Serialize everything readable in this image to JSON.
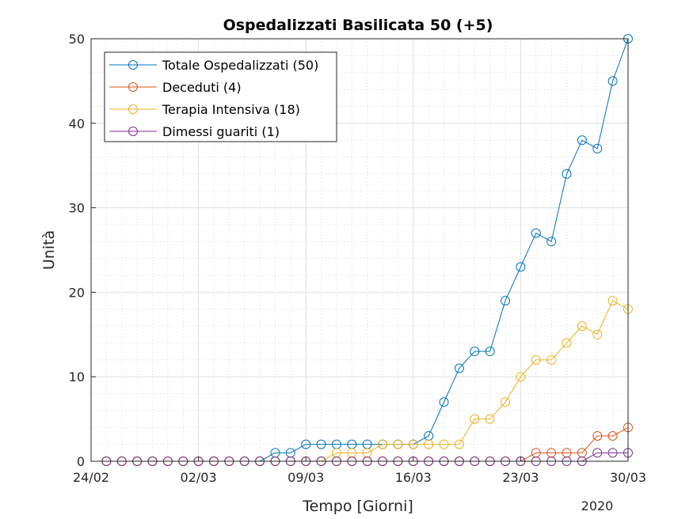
{
  "chart_data": {
    "type": "line",
    "title": "Ospedalizzati Basilicata 50 (+5)",
    "xlabel": "Tempo [Giorni]",
    "ylabel": "Unità",
    "year_label": "2020",
    "ylim": [
      0,
      50
    ],
    "yticks": [
      0,
      10,
      20,
      30,
      40,
      50
    ],
    "xlim": [
      "24/02",
      "30/03"
    ],
    "xtick_labels": [
      "24/02",
      "02/03",
      "09/03",
      "16/03",
      "23/03",
      "30/03"
    ],
    "grid": true,
    "minor_grid": true,
    "legend_position": "top-left",
    "x": [
      "25/02",
      "26/02",
      "27/02",
      "28/02",
      "29/02",
      "01/03",
      "02/03",
      "03/03",
      "04/03",
      "05/03",
      "06/03",
      "07/03",
      "08/03",
      "09/03",
      "10/03",
      "11/03",
      "12/03",
      "13/03",
      "14/03",
      "15/03",
      "16/03",
      "17/03",
      "18/03",
      "19/03",
      "20/03",
      "21/03",
      "22/03",
      "23/03",
      "24/03",
      "25/03",
      "26/03",
      "27/03",
      "28/03",
      "29/03",
      "30/03"
    ],
    "series": [
      {
        "name": "Totale Ospedalizzati (50)",
        "color": "#0072BD",
        "values": [
          0,
          0,
          0,
          0,
          0,
          0,
          0,
          0,
          0,
          0,
          0,
          1,
          1,
          2,
          2,
          2,
          2,
          2,
          2,
          2,
          2,
          3,
          7,
          11,
          13,
          13,
          19,
          23,
          27,
          26,
          34,
          38,
          37,
          45,
          50
        ]
      },
      {
        "name": "Deceduti (4)",
        "color": "#D95319",
        "values": [
          0,
          0,
          0,
          0,
          0,
          0,
          0,
          0,
          0,
          0,
          0,
          0,
          0,
          0,
          0,
          0,
          0,
          0,
          0,
          0,
          0,
          0,
          0,
          0,
          0,
          0,
          0,
          0,
          1,
          1,
          1,
          1,
          3,
          3,
          4
        ]
      },
      {
        "name": "Terapia Intensiva (18)",
        "color": "#EDB120",
        "values": [
          0,
          0,
          0,
          0,
          0,
          0,
          0,
          0,
          0,
          0,
          0,
          0,
          0,
          0,
          0,
          1,
          1,
          1,
          2,
          2,
          2,
          2,
          2,
          2,
          5,
          5,
          7,
          10,
          12,
          12,
          14,
          16,
          15,
          19,
          18
        ]
      },
      {
        "name": "Dimessi guariti (1)",
        "color": "#7E2F8E",
        "values": [
          0,
          0,
          0,
          0,
          0,
          0,
          0,
          0,
          0,
          0,
          0,
          0,
          0,
          0,
          0,
          0,
          0,
          0,
          0,
          0,
          0,
          0,
          0,
          0,
          0,
          0,
          0,
          0,
          0,
          0,
          0,
          0,
          1,
          1,
          1
        ]
      }
    ]
  }
}
